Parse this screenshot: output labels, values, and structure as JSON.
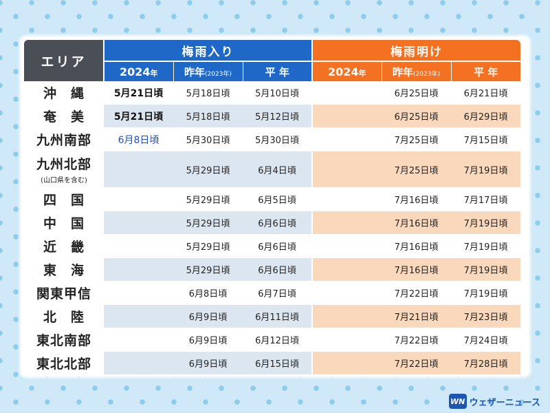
{
  "header": {
    "area": "エリア",
    "group_in": "梅雨入り",
    "group_out": "梅雨明け",
    "year_2024": "2024",
    "year_suffix": "年",
    "last_year": "昨年",
    "last_year_note": "(2023年)",
    "normal": "平 年"
  },
  "rows": [
    {
      "area": "沖　縄",
      "sub": "",
      "in_2024": "5月21日頃",
      "in_last": "5月18日頃",
      "in_normal": "5月10日頃",
      "out_2024": "",
      "out_last": "6月25日頃",
      "out_normal": "6月21日頃"
    },
    {
      "area": "奄　美",
      "sub": "",
      "in_2024": "5月21日頃",
      "in_last": "5月18日頃",
      "in_normal": "5月12日頃",
      "out_2024": "",
      "out_last": "6月25日頃",
      "out_normal": "6月29日頃"
    },
    {
      "area": "九州南部",
      "sub": "",
      "in_2024": "6月8日頃",
      "in_last": "5月30日頃",
      "in_normal": "5月30日頃",
      "out_2024": "",
      "out_last": "7月25日頃",
      "out_normal": "7月15日頃"
    },
    {
      "area": "九州北部",
      "sub": "(山口県を含む)",
      "in_2024": "",
      "in_last": "5月29日頃",
      "in_normal": "6月4日頃",
      "out_2024": "",
      "out_last": "7月25日頃",
      "out_normal": "7月19日頃"
    },
    {
      "area": "四　国",
      "sub": "",
      "in_2024": "",
      "in_last": "5月29日頃",
      "in_normal": "6月5日頃",
      "out_2024": "",
      "out_last": "7月16日頃",
      "out_normal": "7月17日頃"
    },
    {
      "area": "中　国",
      "sub": "",
      "in_2024": "",
      "in_last": "5月29日頃",
      "in_normal": "6月6日頃",
      "out_2024": "",
      "out_last": "7月16日頃",
      "out_normal": "7月19日頃"
    },
    {
      "area": "近　畿",
      "sub": "",
      "in_2024": "",
      "in_last": "5月29日頃",
      "in_normal": "6月6日頃",
      "out_2024": "",
      "out_last": "7月16日頃",
      "out_normal": "7月19日頃"
    },
    {
      "area": "東　海",
      "sub": "",
      "in_2024": "",
      "in_last": "5月29日頃",
      "in_normal": "6月6日頃",
      "out_2024": "",
      "out_last": "7月16日頃",
      "out_normal": "7月19日頃"
    },
    {
      "area": "関東甲信",
      "sub": "",
      "in_2024": "",
      "in_last": "6月8日頃",
      "in_normal": "6月7日頃",
      "out_2024": "",
      "out_last": "7月22日頃",
      "out_normal": "7月19日頃"
    },
    {
      "area": "北　陸",
      "sub": "",
      "in_2024": "",
      "in_last": "6月9日頃",
      "in_normal": "6月11日頃",
      "out_2024": "",
      "out_last": "7月21日頃",
      "out_normal": "7月23日頃"
    },
    {
      "area": "東北南部",
      "sub": "",
      "in_2024": "",
      "in_last": "6月9日頃",
      "in_normal": "6月12日頃",
      "out_2024": "",
      "out_last": "7月22日頃",
      "out_normal": "7月24日頃"
    },
    {
      "area": "東北北部",
      "sub": "",
      "in_2024": "",
      "in_last": "6月9日頃",
      "in_normal": "6月15日頃",
      "out_2024": "",
      "out_last": "7月22日頃",
      "out_normal": "7月28日頃"
    }
  ],
  "logo": {
    "mark": "WN",
    "text": "ウェザーニュース"
  },
  "colors": {
    "rain_in": "#1f68c7",
    "rain_out": "#f37121",
    "area_head": "#4a4e55",
    "highlight_2024": "#1f4fc0"
  }
}
